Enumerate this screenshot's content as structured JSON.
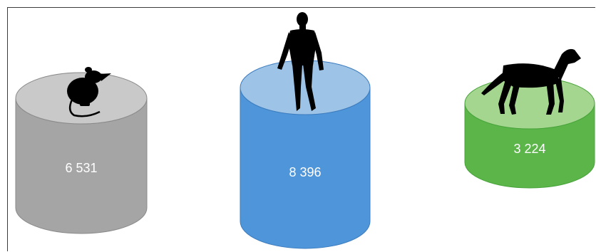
{
  "cylinders": [
    {
      "id": "rat",
      "value": "6 531",
      "animal_icon": "rat-silhouette-icon",
      "body_color": "#a5a5a5",
      "top_color": "#c9c9c9",
      "edge_color": "#8a8a8a"
    },
    {
      "id": "human",
      "value": "8 396",
      "animal_icon": "human-silhouette-icon",
      "body_color": "#4e95d9",
      "top_color": "#9dc3e6",
      "edge_color": "#3d7dbf"
    },
    {
      "id": "dog",
      "value": "3 224",
      "animal_icon": "dog-silhouette-icon",
      "body_color": "#5bb549",
      "top_color": "#a5d68f",
      "edge_color": "#47a33a"
    }
  ]
}
